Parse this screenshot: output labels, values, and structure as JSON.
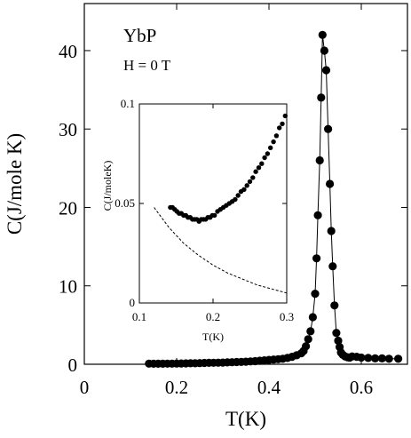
{
  "chart_data": [
    {
      "type": "line",
      "role": "main",
      "xlabel": "T(K)",
      "ylabel": "C(J/mole K)",
      "xlim": [
        0,
        0.7
      ],
      "ylim": [
        0,
        46
      ],
      "xticks": [
        0,
        0.2,
        0.4,
        0.6
      ],
      "xtick_labels": [
        "0",
        "0.2",
        "0.4",
        "0.6"
      ],
      "yticks": [
        0,
        10,
        20,
        30,
        40
      ],
      "ytick_labels": [
        "0",
        "10",
        "20",
        "30",
        "40"
      ],
      "annotations": [
        "YbP",
        "H = 0 T"
      ],
      "grid": false,
      "series": [
        {
          "marker": "filled-circle",
          "connected": true,
          "color": "#000000",
          "x": [
            0.14,
            0.15,
            0.16,
            0.17,
            0.18,
            0.19,
            0.2,
            0.21,
            0.22,
            0.23,
            0.24,
            0.25,
            0.26,
            0.27,
            0.28,
            0.29,
            0.3,
            0.31,
            0.32,
            0.33,
            0.34,
            0.35,
            0.36,
            0.37,
            0.38,
            0.39,
            0.4,
            0.41,
            0.42,
            0.43,
            0.44,
            0.45,
            0.46,
            0.47,
            0.475,
            0.48,
            0.485,
            0.49,
            0.495,
            0.5,
            0.503,
            0.506,
            0.51,
            0.513,
            0.516,
            0.52,
            0.524,
            0.528,
            0.532,
            0.535,
            0.538,
            0.542,
            0.546,
            0.55,
            0.553,
            0.556,
            0.56,
            0.565,
            0.57,
            0.575,
            0.58,
            0.59,
            0.6,
            0.615,
            0.63,
            0.645,
            0.66,
            0.68
          ],
          "y": [
            0.08,
            0.07,
            0.07,
            0.07,
            0.08,
            0.08,
            0.09,
            0.1,
            0.11,
            0.12,
            0.13,
            0.15,
            0.17,
            0.18,
            0.19,
            0.2,
            0.22,
            0.24,
            0.26,
            0.28,
            0.3,
            0.33,
            0.36,
            0.4,
            0.45,
            0.5,
            0.55,
            0.6,
            0.65,
            0.7,
            0.8,
            0.95,
            1.15,
            1.4,
            1.7,
            2.3,
            3.2,
            4.2,
            6.0,
            9.0,
            13.5,
            19.0,
            26.0,
            34.0,
            42.0,
            40.0,
            37.5,
            30.0,
            23.0,
            17.0,
            12.5,
            7.5,
            4.0,
            3.0,
            2.2,
            1.5,
            1.2,
            1.0,
            0.9,
            0.85,
            1.0,
            0.95,
            0.85,
            0.8,
            0.75,
            0.75,
            0.7,
            0.7
          ]
        }
      ]
    },
    {
      "type": "scatter",
      "role": "inset",
      "xlabel": "T(K)",
      "ylabel": "C(J/moleK)",
      "xlim": [
        0.1,
        0.3
      ],
      "ylim": [
        0,
        0.1
      ],
      "xticks": [
        0.1,
        0.2,
        0.3
      ],
      "xtick_labels": [
        "0.1",
        "0.2",
        "0.3"
      ],
      "yticks": [
        0,
        0.05,
        0.1
      ],
      "ytick_labels": [
        "0",
        "0.05",
        "0.1"
      ],
      "grid": false,
      "series": [
        {
          "marker": "filled-circle",
          "color": "#000000",
          "x": [
            0.142,
            0.145,
            0.148,
            0.151,
            0.154,
            0.157,
            0.16,
            0.163,
            0.166,
            0.169,
            0.172,
            0.175,
            0.178,
            0.181,
            0.184,
            0.187,
            0.19,
            0.193,
            0.196,
            0.199,
            0.202,
            0.206,
            0.21,
            0.214,
            0.218,
            0.222,
            0.226,
            0.23,
            0.234,
            0.238,
            0.242,
            0.246,
            0.25,
            0.254,
            0.258,
            0.262,
            0.266,
            0.27,
            0.274,
            0.278,
            0.282,
            0.286,
            0.29,
            0.294,
            0.298
          ],
          "y": [
            0.048,
            0.048,
            0.047,
            0.046,
            0.045,
            0.045,
            0.044,
            0.044,
            0.043,
            0.043,
            0.042,
            0.042,
            0.042,
            0.041,
            0.042,
            0.042,
            0.042,
            0.043,
            0.043,
            0.044,
            0.044,
            0.046,
            0.047,
            0.048,
            0.049,
            0.05,
            0.051,
            0.052,
            0.054,
            0.056,
            0.057,
            0.059,
            0.061,
            0.063,
            0.066,
            0.068,
            0.07,
            0.073,
            0.075,
            0.078,
            0.081,
            0.084,
            0.088,
            0.09,
            0.094
          ]
        },
        {
          "style": "dashed",
          "color": "#000000",
          "x": [
            0.12,
            0.14,
            0.16,
            0.18,
            0.2,
            0.22,
            0.24,
            0.26,
            0.28,
            0.3
          ],
          "y": [
            0.048,
            0.038,
            0.03,
            0.024,
            0.019,
            0.015,
            0.012,
            0.009,
            0.007,
            0.005
          ]
        }
      ]
    }
  ]
}
